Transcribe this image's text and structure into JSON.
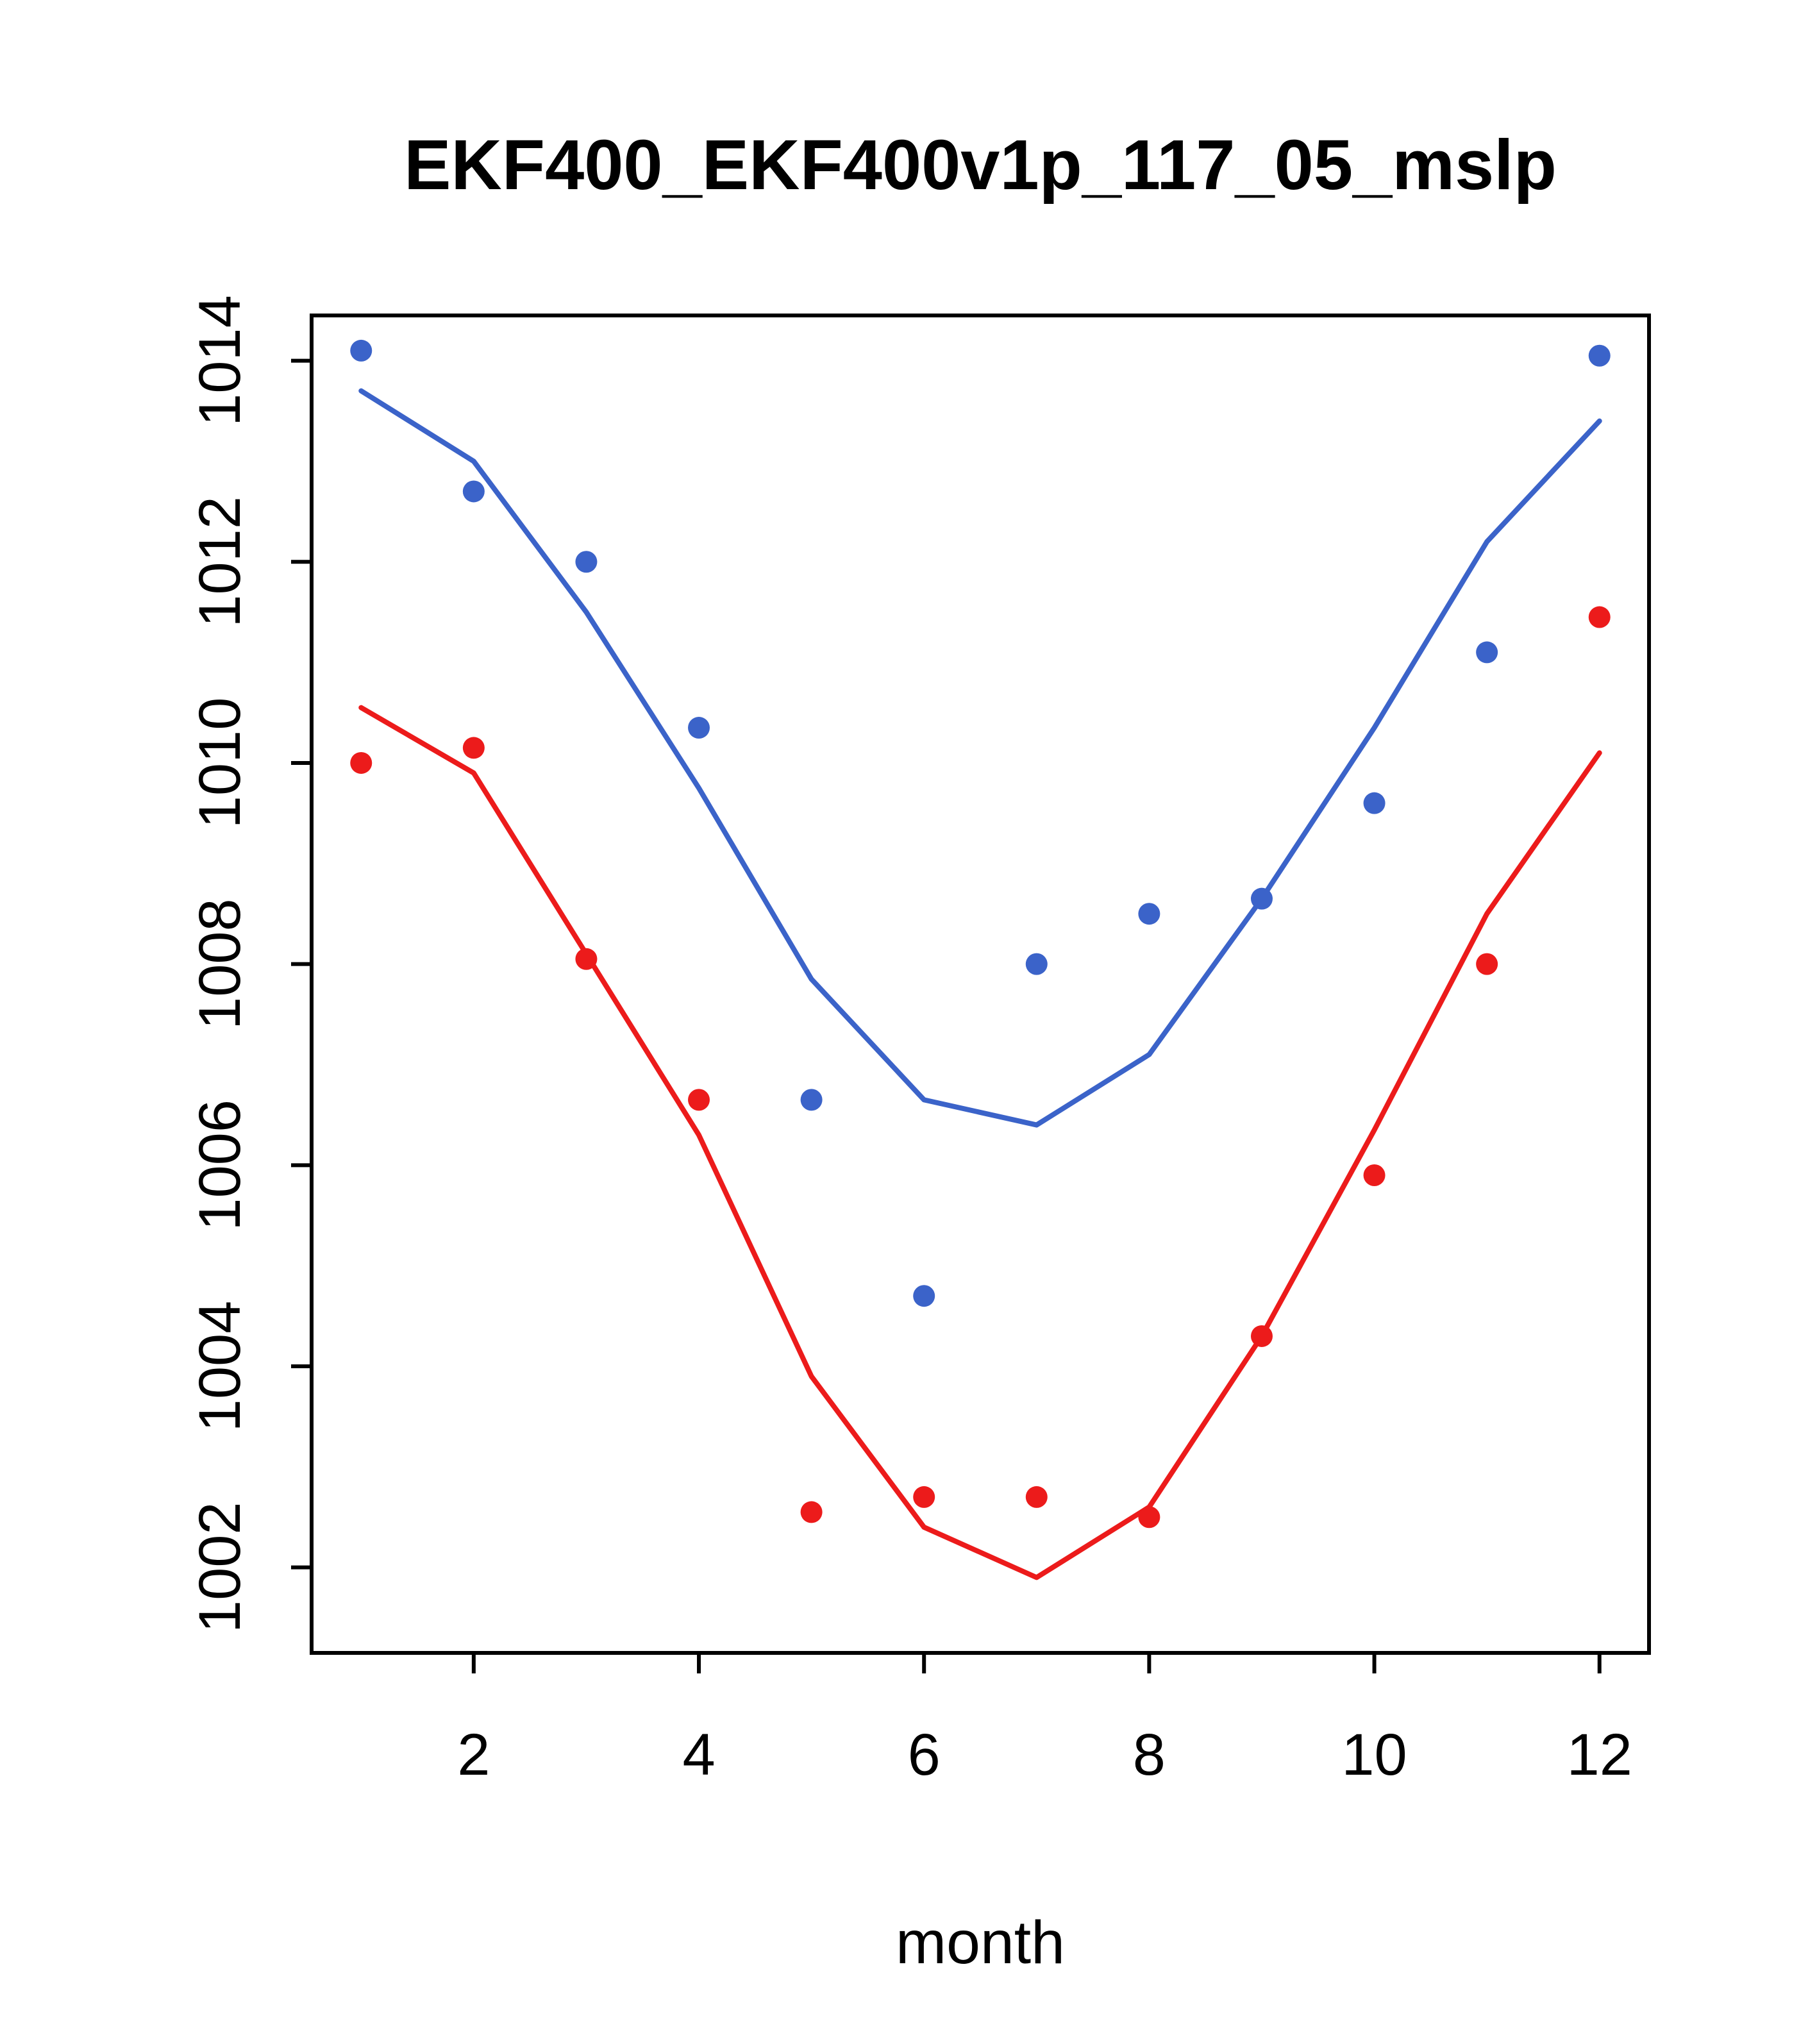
{
  "chart_data": {
    "type": "line",
    "title": "EKF400_EKF400v1p_117_05_mslp",
    "xlabel": "month",
    "ylabel": "",
    "grid": false,
    "legend": "none",
    "x": [
      1,
      2,
      3,
      4,
      5,
      6,
      7,
      8,
      9,
      10,
      11,
      12
    ],
    "xlim": [
      0.56,
      12.44
    ],
    "ylim": [
      1001.15,
      1014.45
    ],
    "x_ticks": [
      2,
      4,
      6,
      8,
      10,
      12
    ],
    "y_ticks": [
      1002,
      1004,
      1006,
      1008,
      1010,
      1012,
      1014
    ],
    "colors": {
      "blue_series": "#3B63C9",
      "red_series": "#EC1B1B",
      "axis": "#000000",
      "background": "#ffffff"
    },
    "series": [
      {
        "name": "blue-line",
        "style": "line",
        "color": "#3B63C9",
        "values": [
          1013.7,
          1013.0,
          1011.5,
          1009.75,
          1007.85,
          1006.65,
          1006.4,
          1007.1,
          1008.65,
          1010.35,
          1012.2,
          1013.4
        ]
      },
      {
        "name": "blue-points",
        "style": "points",
        "color": "#3B63C9",
        "values": [
          1014.1,
          1012.7,
          1012.0,
          1010.35,
          1006.65,
          1004.7,
          1008.0,
          1008.5,
          1008.65,
          1009.6,
          1011.1,
          1014.05
        ]
      },
      {
        "name": "red-line",
        "style": "line",
        "color": "#EC1B1B",
        "values": [
          1010.55,
          1009.9,
          1008.1,
          1006.3,
          1003.9,
          1002.4,
          1001.9,
          1002.6,
          1004.3,
          1006.35,
          1008.5,
          1010.1
        ]
      },
      {
        "name": "red-points",
        "style": "points",
        "color": "#EC1B1B",
        "values": [
          1010.0,
          1010.15,
          1008.05,
          1006.65,
          1002.55,
          1002.7,
          1002.7,
          1002.5,
          1004.3,
          1005.9,
          1008.0,
          1011.45
        ]
      }
    ]
  }
}
